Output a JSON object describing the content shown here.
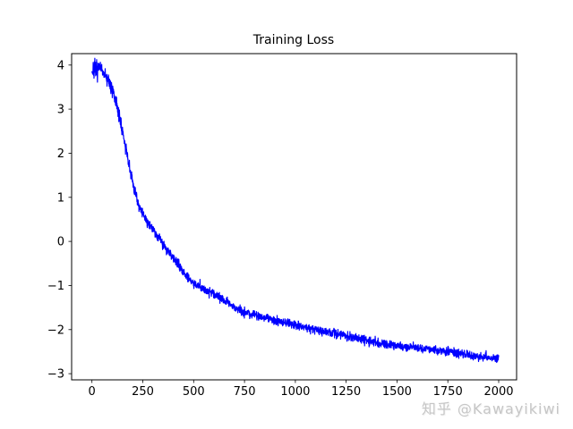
{
  "chart_data": {
    "type": "line",
    "title": "Training Loss",
    "xlabel": "",
    "ylabel": "",
    "grid": false,
    "legend": null,
    "x_ticks": [
      0,
      250,
      500,
      750,
      1000,
      1250,
      1500,
      1750,
      2000
    ],
    "x_tick_labels": [
      "0",
      "250",
      "500",
      "750",
      "1000",
      "1250",
      "1500",
      "1750",
      "2000"
    ],
    "y_ticks": [
      -3,
      -2,
      -1,
      0,
      1,
      2,
      3,
      4
    ],
    "y_tick_labels": [
      "−3",
      "−2",
      "−1",
      "0",
      "1",
      "2",
      "3",
      "4"
    ],
    "xlim": [
      -100,
      2088
    ],
    "ylim": [
      -3.14,
      4.26
    ],
    "axis_color": "#000000",
    "series": [
      {
        "name": "training loss",
        "color": "#0000ff",
        "n_points": 2000,
        "x_start": 0,
        "x_end": 2000,
        "y_start": 3.9,
        "y_end": -2.67,
        "anchors": [
          [
            0,
            3.9
          ],
          [
            50,
            3.9
          ],
          [
            90,
            3.55
          ],
          [
            120,
            3.15
          ],
          [
            150,
            2.5
          ],
          [
            180,
            1.78
          ],
          [
            210,
            1.12
          ],
          [
            240,
            0.72
          ],
          [
            270,
            0.45
          ],
          [
            300,
            0.28
          ],
          [
            340,
            0.02
          ],
          [
            380,
            -0.25
          ],
          [
            420,
            -0.5
          ],
          [
            460,
            -0.75
          ],
          [
            500,
            -0.95
          ],
          [
            550,
            -1.08
          ],
          [
            600,
            -1.18
          ],
          [
            650,
            -1.33
          ],
          [
            700,
            -1.5
          ],
          [
            750,
            -1.6
          ],
          [
            800,
            -1.67
          ],
          [
            900,
            -1.78
          ],
          [
            1000,
            -1.9
          ],
          [
            1100,
            -2.0
          ],
          [
            1200,
            -2.08
          ],
          [
            1300,
            -2.2
          ],
          [
            1400,
            -2.3
          ],
          [
            1500,
            -2.36
          ],
          [
            1600,
            -2.42
          ],
          [
            1700,
            -2.47
          ],
          [
            1800,
            -2.54
          ],
          [
            1900,
            -2.6
          ],
          [
            2000,
            -2.67
          ]
        ],
        "noise": {
          "seed": 7,
          "base_sigma": 0.05,
          "extra_sigma": 0.065,
          "extra_decay": 120,
          "spike_prob": 0.06,
          "spike_scale": 0.5
        }
      }
    ]
  },
  "watermark": {
    "text": "知乎 @Kawayikiwi",
    "color": "#c6c6c6"
  }
}
